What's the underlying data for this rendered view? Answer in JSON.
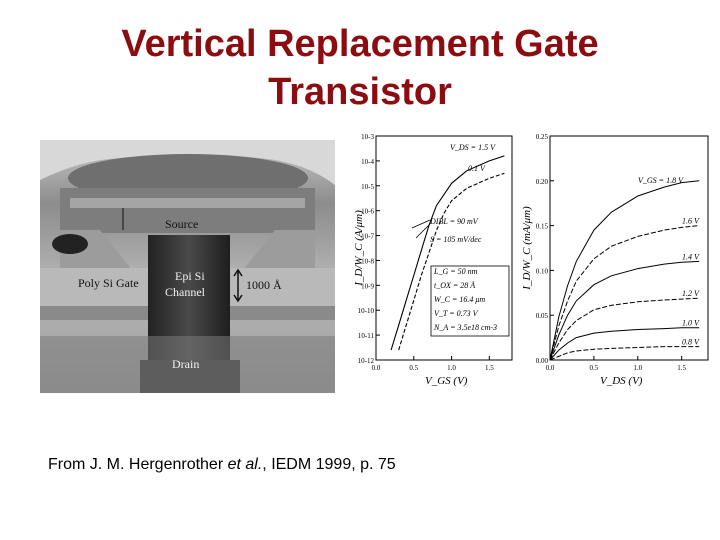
{
  "slide": {
    "title_line1": "Vertical Replacement Gate",
    "title_line2": "Transistor",
    "title_color": "#8b0d12"
  },
  "micrograph": {
    "label_source": "Source",
    "label_poly": "Poly Si Gate",
    "label_epi1": "Epi Si",
    "label_epi2": "Channel",
    "label_dim": "1000 Å",
    "label_drain": "Drain"
  },
  "caption": {
    "prefix": "From  J. M. Hergenrother ",
    "etal": "et al.",
    "suffix": ",  IEDM 1999, p. 75"
  },
  "chart_data": [
    {
      "type": "line",
      "ylabel": "I_D/W_C (A/μm)",
      "xlabel": "V_GS (V)",
      "x_ticks": [
        "0.0",
        "0.5",
        "1.0",
        "1.5"
      ],
      "y_ticks": [
        "10-3",
        "10-4",
        "10-5",
        "10-6",
        "10-7",
        "10-8",
        "10-9",
        "10-10",
        "10-11",
        "10-12"
      ],
      "xlim": [
        0,
        1.8
      ],
      "ylim_log10": [
        -12,
        -3
      ],
      "y_scale": "log",
      "legend": {
        "vds_label": "V_DS = 1.5 V",
        "vds_label2": "0.1 V"
      },
      "annotations": {
        "dibl": "DIBL = 90 mV",
        "s": "S = 105 mV/dec",
        "lg": "L_G = 50 nm",
        "tox": "t_OX = 28 Å",
        "wc": "W_C = 16.4 μm",
        "vt": "V_T = 0.73 V",
        "na": "N_A = 3.5e18 cm-3"
      },
      "series": [
        {
          "x": [
            0.2,
            0.3,
            0.4,
            0.5,
            0.6,
            0.7,
            0.8,
            1.0,
            1.2,
            1.5,
            1.7
          ],
          "values": [
            -11.6,
            -10.6,
            -9.6,
            -8.6,
            -7.6,
            -6.6,
            -5.8,
            -4.9,
            -4.4,
            -4.0,
            -3.8
          ]
        },
        {
          "x": [
            0.3,
            0.4,
            0.5,
            0.6,
            0.7,
            0.8,
            0.9,
            1.0,
            1.2,
            1.5,
            1.7
          ],
          "values": [
            -11.6,
            -10.6,
            -9.6,
            -8.6,
            -7.7,
            -6.8,
            -6.1,
            -5.6,
            -5.1,
            -4.7,
            -4.5
          ]
        }
      ]
    },
    {
      "type": "line",
      "ylabel": "I_D/W_C (mA/μm)",
      "xlabel": "V_DS (V)",
      "x_ticks": [
        "0.0",
        "0.5",
        "1.0",
        "1.5"
      ],
      "y_ticks": [
        "0.00",
        "0.05",
        "0.10",
        "0.15",
        "0.20",
        "0.25"
      ],
      "xlim": [
        0,
        1.8
      ],
      "ylim": [
        0,
        0.25
      ],
      "legend_title": "V_GS = 1.8 V",
      "series": [
        {
          "name": "1.8 V",
          "x": [
            0,
            0.1,
            0.2,
            0.3,
            0.5,
            0.7,
            1.0,
            1.3,
            1.5,
            1.7
          ],
          "values": [
            0,
            0.048,
            0.083,
            0.11,
            0.145,
            0.165,
            0.183,
            0.193,
            0.198,
            0.2
          ]
        },
        {
          "name": "1.6 V",
          "x": [
            0,
            0.1,
            0.2,
            0.3,
            0.5,
            0.7,
            1.0,
            1.3,
            1.5,
            1.7
          ],
          "values": [
            0,
            0.038,
            0.066,
            0.088,
            0.113,
            0.127,
            0.138,
            0.145,
            0.148,
            0.15
          ]
        },
        {
          "name": "1.4 V",
          "x": [
            0,
            0.1,
            0.2,
            0.3,
            0.5,
            0.7,
            1.0,
            1.3,
            1.5,
            1.7
          ],
          "values": [
            0,
            0.028,
            0.05,
            0.066,
            0.084,
            0.094,
            0.102,
            0.107,
            0.109,
            0.11
          ]
        },
        {
          "name": "1.2 V",
          "x": [
            0,
            0.1,
            0.2,
            0.3,
            0.5,
            0.7,
            1.0,
            1.3,
            1.5,
            1.7
          ],
          "values": [
            0,
            0.019,
            0.034,
            0.044,
            0.056,
            0.061,
            0.065,
            0.067,
            0.068,
            0.069
          ]
        },
        {
          "name": "1.0 V",
          "x": [
            0,
            0.1,
            0.2,
            0.3,
            0.5,
            0.7,
            1.0,
            1.3,
            1.5,
            1.7
          ],
          "values": [
            0,
            0.011,
            0.019,
            0.025,
            0.03,
            0.032,
            0.034,
            0.035,
            0.036,
            0.036
          ]
        },
        {
          "name": "0.8 V",
          "x": [
            0,
            0.1,
            0.2,
            0.3,
            0.5,
            0.7,
            1.0,
            1.3,
            1.5,
            1.7
          ],
          "values": [
            0,
            0.004,
            0.008,
            0.01,
            0.012,
            0.013,
            0.014,
            0.015,
            0.015,
            0.015
          ]
        }
      ]
    }
  ]
}
